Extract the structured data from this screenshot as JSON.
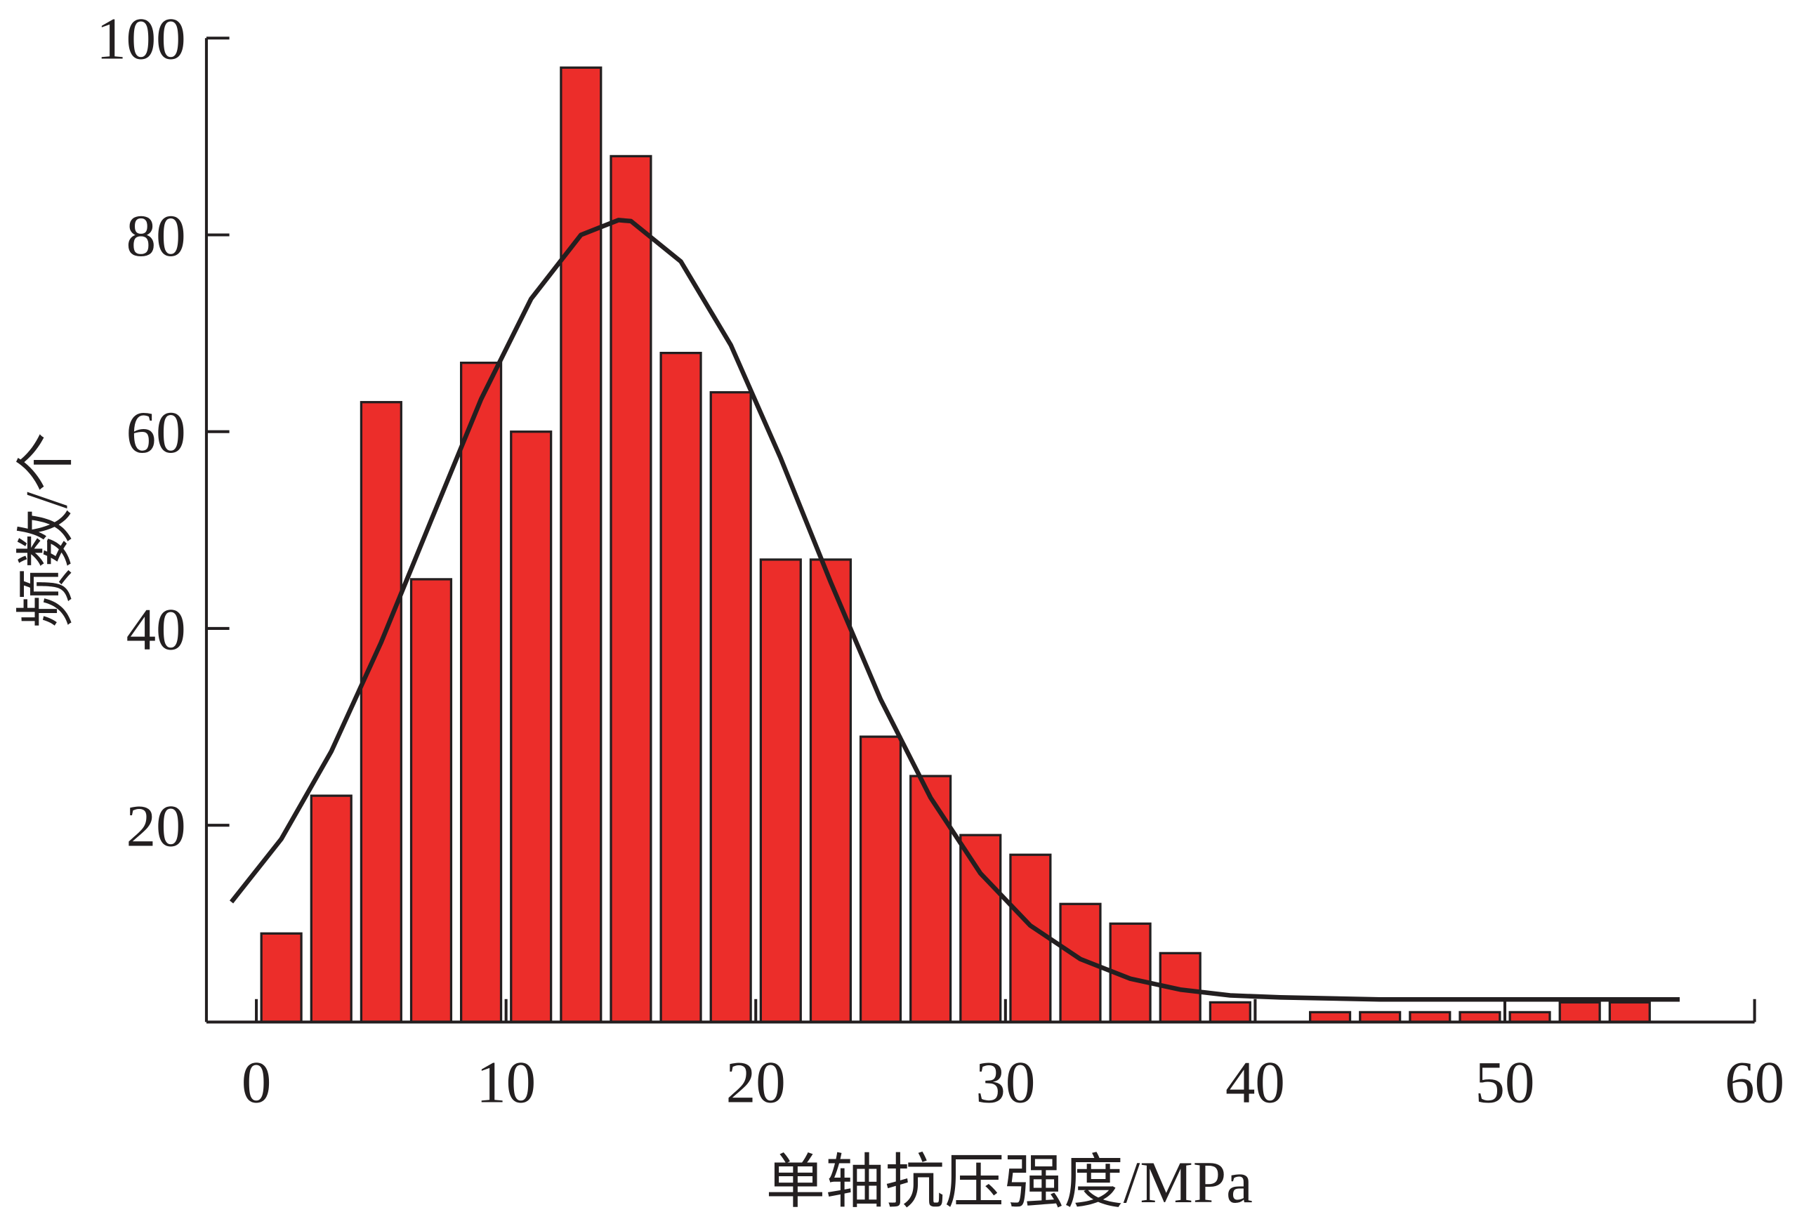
{
  "chart_data": {
    "type": "histogram",
    "xlabel": "单轴抗压强度/MPa",
    "ylabel": "频数/个",
    "bins": [
      0,
      2,
      4,
      6,
      8,
      10,
      12,
      14,
      16,
      18,
      20,
      22,
      24,
      26,
      28,
      30,
      32,
      34,
      36,
      38,
      40,
      42,
      44,
      46,
      48,
      50,
      52,
      54,
      56
    ],
    "counts": [
      9,
      23,
      63,
      45,
      67,
      60,
      97,
      88,
      68,
      64,
      47,
      47,
      29,
      25,
      19,
      17,
      12,
      10,
      7,
      2,
      0,
      1,
      1,
      1,
      1,
      1,
      2,
      2
    ],
    "color": "#ec2d2a",
    "fit": {
      "color": "#231f20",
      "x": [
        -1,
        1,
        3,
        5,
        7,
        9,
        11,
        13,
        14.5,
        15,
        17,
        19,
        21,
        23,
        25,
        27,
        29,
        31,
        33,
        35,
        37,
        39,
        41,
        45,
        50,
        57
      ],
      "values": [
        12.2,
        18.6,
        27.5,
        38.6,
        51.0,
        63.3,
        73.5,
        80.0,
        81.5,
        81.4,
        77.3,
        68.8,
        57.3,
        44.7,
        32.8,
        22.8,
        15.1,
        9.8,
        6.4,
        4.4,
        3.3,
        2.7,
        2.5,
        2.3,
        2.3,
        2.3
      ]
    },
    "xlim": [
      -2,
      60
    ],
    "xticks": [
      0,
      10,
      20,
      30,
      40,
      50,
      60
    ],
    "ylim": [
      0,
      100
    ],
    "yticks": [
      20,
      40,
      60,
      80,
      100
    ]
  }
}
